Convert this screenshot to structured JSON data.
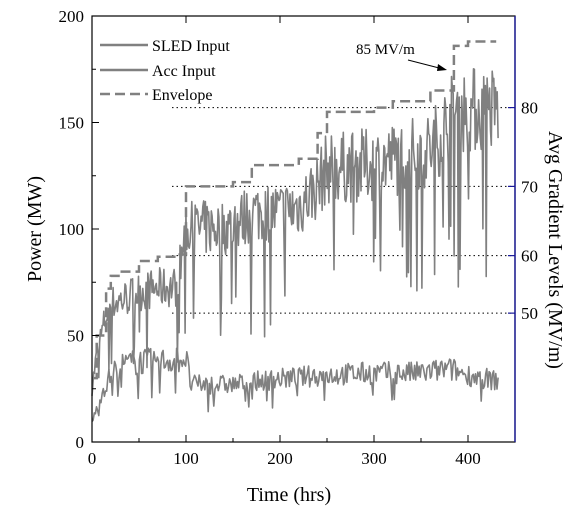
{
  "chart_data": {
    "type": "line",
    "xlabel": "Time (hrs)",
    "ylabel": "Power (MW)",
    "y2label": "Avg Gradient Levels (MV/m)",
    "xlim": [
      0,
      450
    ],
    "ylim": [
      0,
      200
    ],
    "xticks": [
      0,
      100,
      200,
      300,
      400
    ],
    "yticks": [
      0,
      50,
      100,
      150,
      200
    ],
    "y2ticks": [
      {
        "label": "50",
        "power": 60.5
      },
      {
        "label": "60",
        "power": 87.5
      },
      {
        "label": "70",
        "power": 120
      },
      {
        "label": "80",
        "power": 157
      }
    ],
    "gradient_reference_lines": [
      60.5,
      87.5,
      120,
      157
    ],
    "series": [
      {
        "name": "SLED Input",
        "legend_color": "#0000cc",
        "line_color": "#808080",
        "style": "solid"
      },
      {
        "name": "Acc Input",
        "legend_color": "#000000",
        "line_color": "#808080",
        "style": "solid"
      },
      {
        "name": "Envelope",
        "legend_color": "#cc0000",
        "line_color": "#808080",
        "style": "dashed"
      }
    ],
    "envelope": {
      "x": [
        0,
        5,
        15,
        20,
        30,
        50,
        70,
        90,
        100,
        150,
        170,
        200,
        220,
        240,
        250,
        260,
        300,
        320,
        360,
        385,
        400,
        430
      ],
      "y": [
        30,
        50,
        72,
        78,
        80,
        85,
        87,
        88,
        120,
        122,
        130,
        130,
        133,
        145,
        155,
        155,
        157,
        160,
        165,
        186,
        188,
        188
      ]
    },
    "acc_input_envelope": {
      "x": [
        0,
        10,
        20,
        30,
        50,
        70,
        90,
        100,
        105,
        120,
        150,
        180,
        200,
        250,
        300,
        350,
        380,
        400,
        430
      ],
      "y": [
        10,
        25,
        35,
        40,
        42,
        42,
        43,
        44,
        30,
        30,
        30,
        32,
        33,
        35,
        36,
        36,
        38,
        35,
        32
      ]
    },
    "annotations": [
      {
        "text": "85 MV/m",
        "x": 385,
        "y": 186
      }
    ]
  },
  "colors": {
    "trace": "#808080",
    "reference_lines": "#000000",
    "axis": "#000000"
  }
}
